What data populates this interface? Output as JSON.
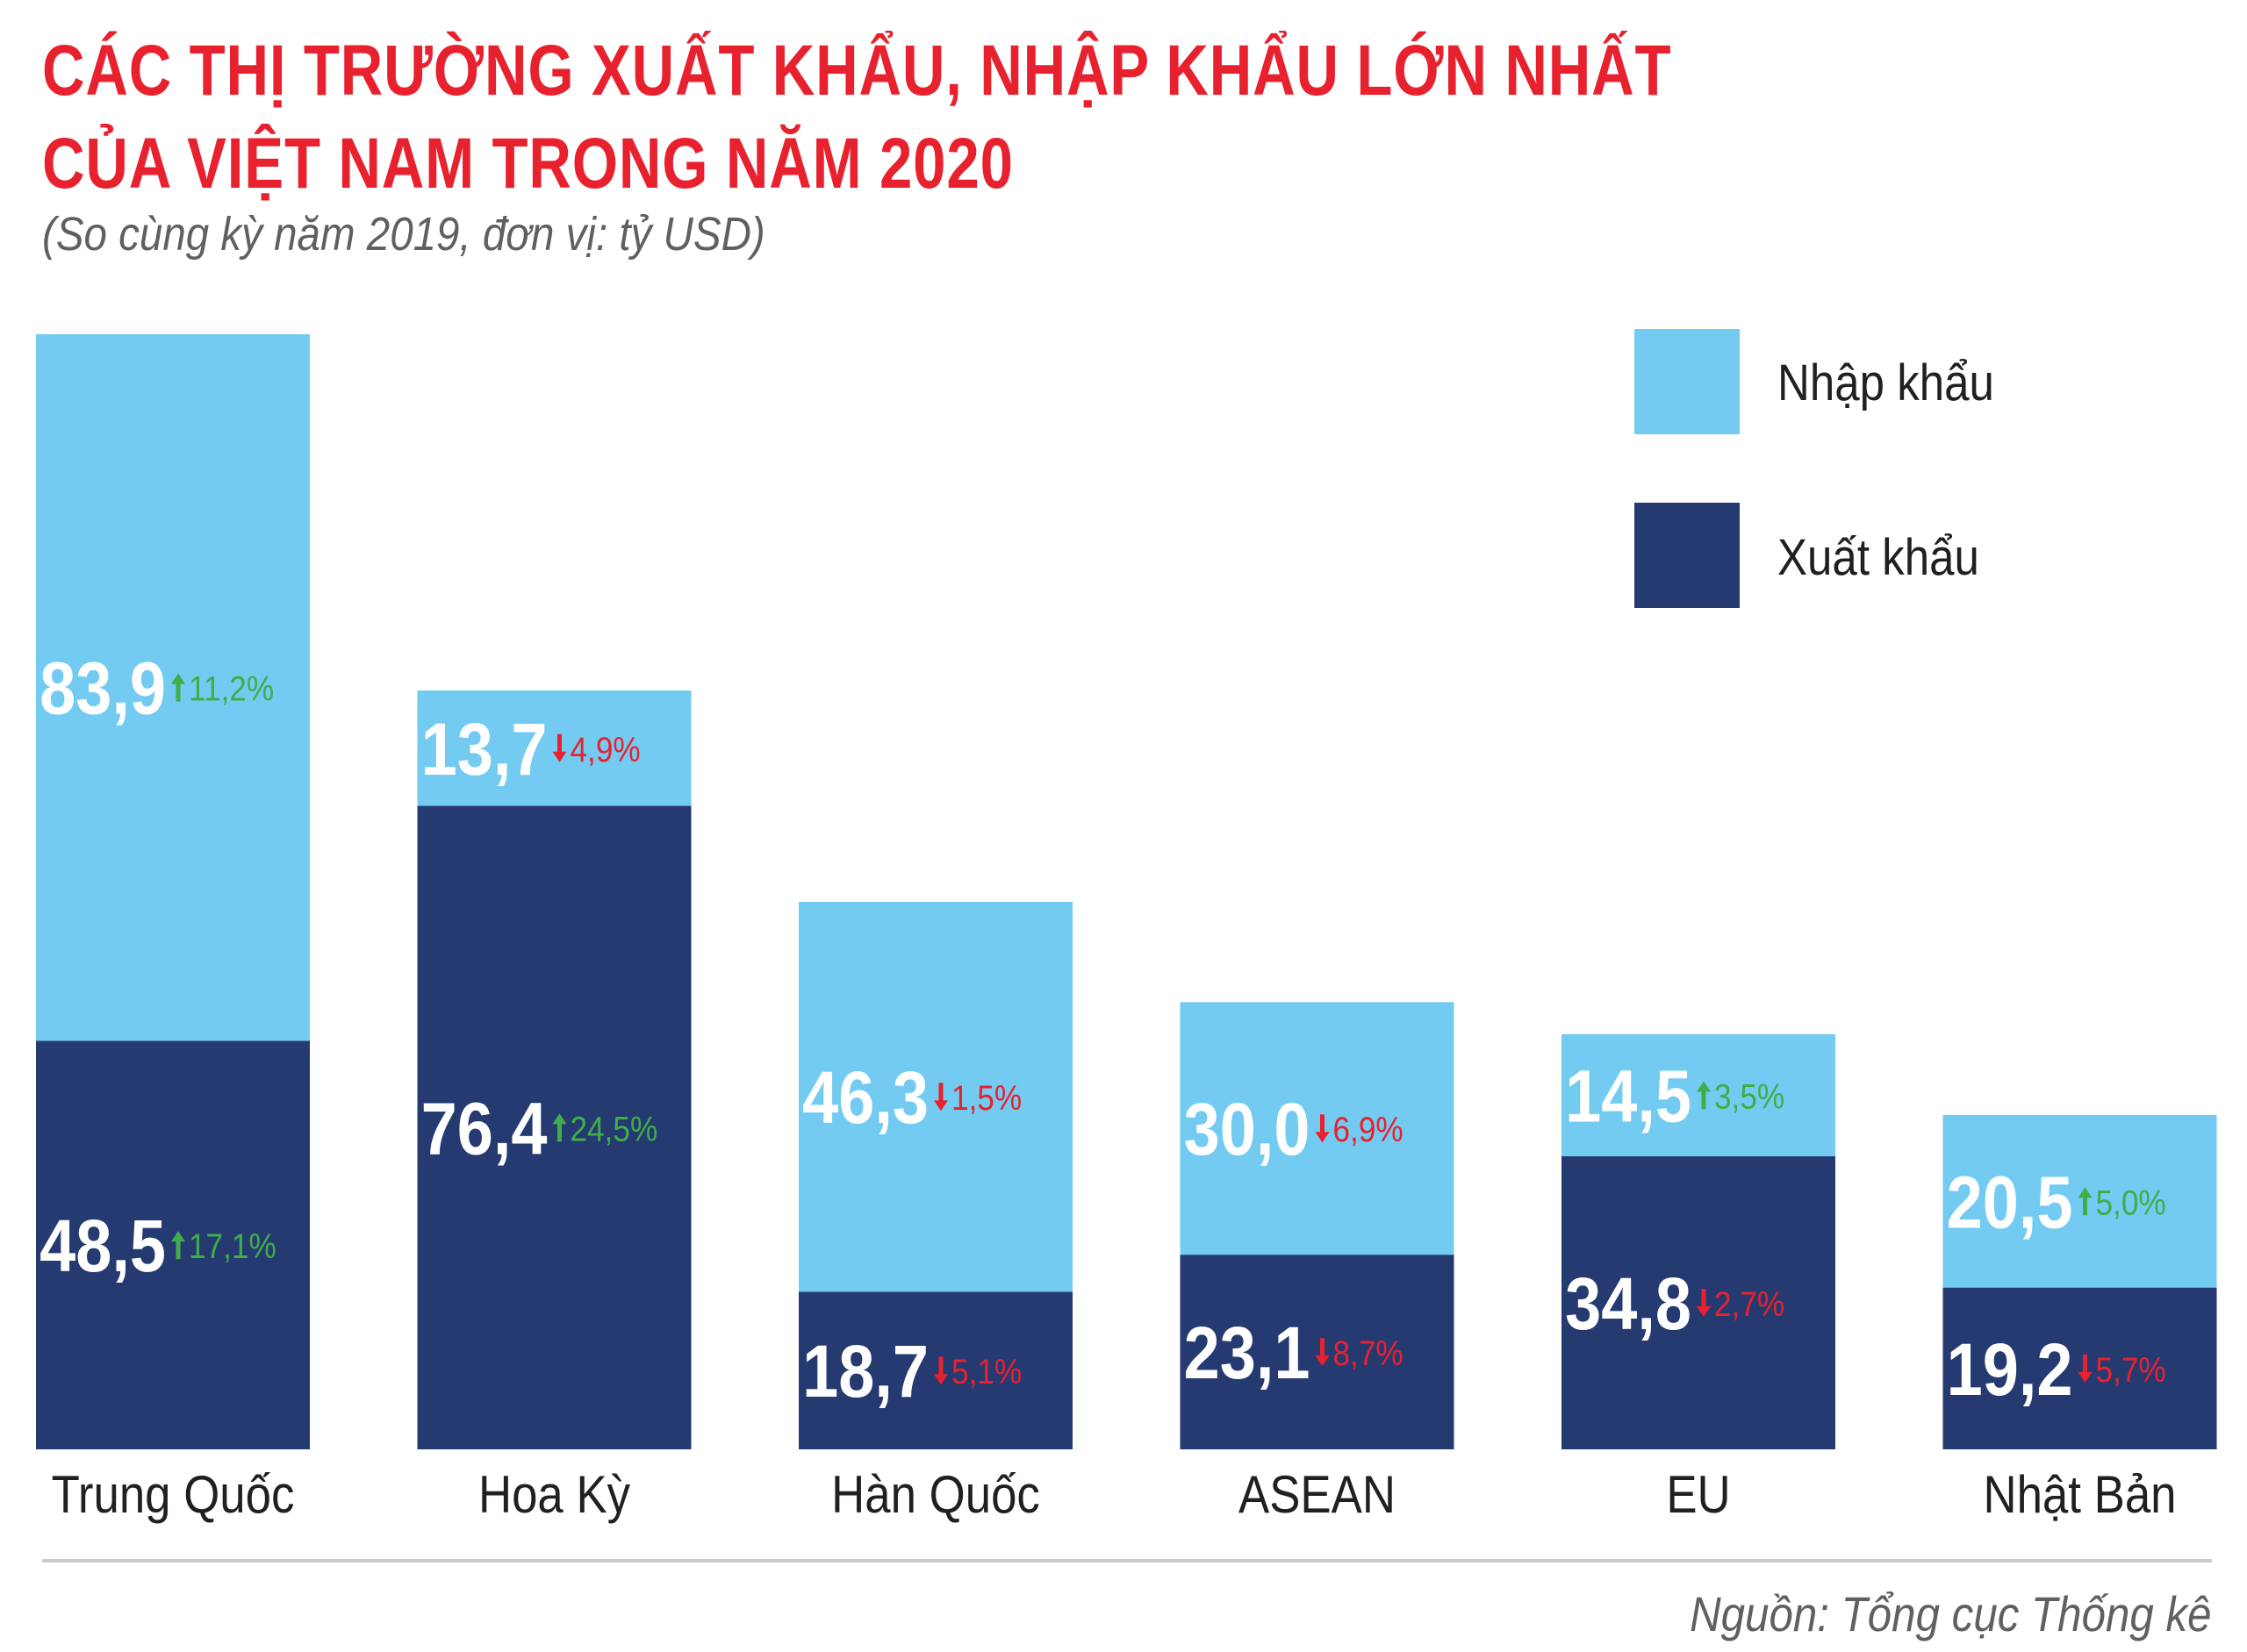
{
  "header": {
    "title_line_1": "CÁC THỊ TRƯỜNG XUẤT KHẨU, NHẬP KHẨU LỚN NHẤT",
    "title_line_2": "CỦA VIỆT NAM TRONG NĂM 2020",
    "subtitle": "(So cùng kỳ năm 2019, đơn vị: tỷ USD)"
  },
  "legend": {
    "import_label": "Nhập khẩu",
    "export_label": "Xuất khẩu"
  },
  "footer": {
    "source": "Nguồn: Tổng cục Thống kê"
  },
  "colors": {
    "title": "#e8212e",
    "import": "#73cbf2",
    "export": "#253a71",
    "up": "#3fae49",
    "down": "#e8212e",
    "value_text": "#ffffff",
    "category_text": "#231f20"
  },
  "chart_data": {
    "type": "bar",
    "stacked": true,
    "title": "CÁC THỊ TRƯỜNG XUẤT KHẨU, NHẬP KHẨU LỚN NHẤT CỦA VIỆT NAM TRONG NĂM 2020",
    "xlabel": "",
    "ylabel": "tỷ USD",
    "grid": false,
    "legend_position": "top-right",
    "categories": [
      "Trung Quốc",
      "Hoa Kỳ",
      "Hàn Quốc",
      "ASEAN",
      "EU",
      "Nhật Bản"
    ],
    "series": [
      {
        "name": "Xuất khẩu",
        "key": "export",
        "values": [
          48.5,
          76.4,
          18.7,
          23.1,
          34.8,
          19.2
        ],
        "labels": [
          "48,5",
          "76,4",
          "18,7",
          "23,1",
          "34,8",
          "19,2"
        ],
        "changes": [
          "17,1%",
          "24,5%",
          "5,1%",
          "8,7%",
          "2,7%",
          "5,7%"
        ],
        "directions": [
          "up",
          "up",
          "down",
          "down",
          "down",
          "down"
        ]
      },
      {
        "name": "Nhập khẩu",
        "key": "import",
        "values": [
          83.9,
          13.7,
          46.3,
          30.0,
          14.5,
          20.5
        ],
        "labels": [
          "83,9",
          "13,7",
          "46,3",
          "30,0",
          "14,5",
          "20,5"
        ],
        "changes": [
          "11,2%",
          "4,9%",
          "1,5%",
          "6,9%",
          "3,5%",
          "5,0%"
        ],
        "directions": [
          "up",
          "down",
          "down",
          "down",
          "up",
          "up"
        ]
      }
    ]
  }
}
